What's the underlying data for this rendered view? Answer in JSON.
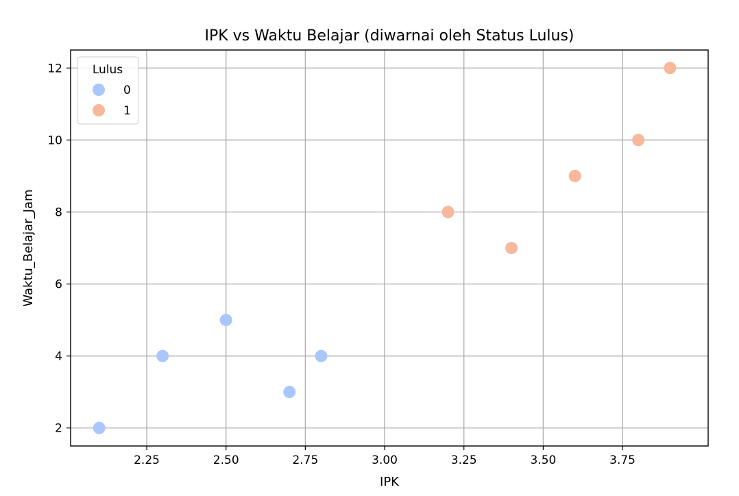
{
  "chart_data": {
    "type": "scatter",
    "title": "IPK vs Waktu Belajar (diwarnai oleh Status Lulus)",
    "xlabel": "IPK",
    "ylabel": "Waktu_Belajar_Jam",
    "xlim": [
      2.01,
      4.02
    ],
    "ylim": [
      1.5,
      12.5
    ],
    "xticks": [
      2.25,
      2.5,
      2.75,
      3.0,
      3.25,
      3.5,
      3.75
    ],
    "xtick_labels": [
      "2.25",
      "2.50",
      "2.75",
      "3.00",
      "3.25",
      "3.50",
      "3.75"
    ],
    "yticks": [
      2,
      4,
      6,
      8,
      10,
      12
    ],
    "ytick_labels": [
      "2",
      "4",
      "6",
      "8",
      "10",
      "12"
    ],
    "grid": true,
    "legend": {
      "title": "Lulus",
      "placement": "top-left"
    },
    "series": [
      {
        "name": "0",
        "color": "#aac7fd",
        "points": [
          {
            "x": 2.1,
            "y": 2
          },
          {
            "x": 2.3,
            "y": 4
          },
          {
            "x": 2.5,
            "y": 5
          },
          {
            "x": 2.7,
            "y": 3
          },
          {
            "x": 2.8,
            "y": 4
          }
        ]
      },
      {
        "name": "1",
        "color": "#f7b89c",
        "points": [
          {
            "x": 3.2,
            "y": 8
          },
          {
            "x": 3.4,
            "y": 7
          },
          {
            "x": 3.6,
            "y": 9
          },
          {
            "x": 3.8,
            "y": 10
          },
          {
            "x": 3.9,
            "y": 12
          }
        ]
      }
    ]
  }
}
